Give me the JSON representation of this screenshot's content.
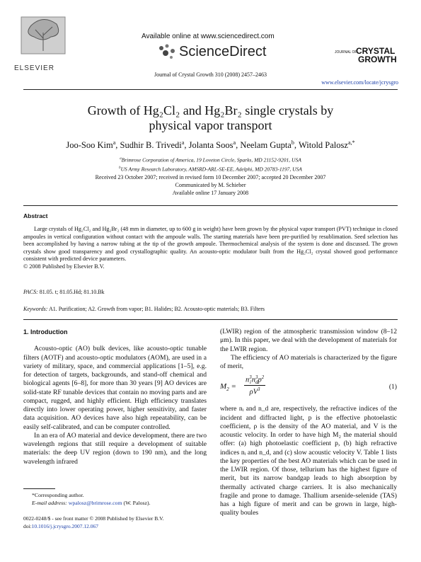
{
  "header": {
    "publisher": "ELSEVIER",
    "available_online": "Available online at www.sciencedirect.com",
    "brand": "ScienceDirect",
    "journal_logo": [
      "JOURNAL OF",
      "CRYSTAL",
      "GROWTH"
    ],
    "journal_ref": "Journal of Crystal Growth 310 (2008) 2457–2463",
    "url": "www.elsevier.com/locate/jcrysgro"
  },
  "title": "Growth of Hg₂Cl₂ and Hg₂Br₂ single crystals by physical vapor transport",
  "authors": [
    {
      "name": "Joo-Soo Kim",
      "affiliation": "a"
    },
    {
      "name": "Sudhir B. Trivedi",
      "affiliation": "a"
    },
    {
      "name": "Jolanta Soos",
      "affiliation": "a"
    },
    {
      "name": "Neelam Gupta",
      "affiliation": "b"
    },
    {
      "name": "Witold Palosz",
      "affiliation": "a,*"
    }
  ],
  "author_separator": ",",
  "affiliations": [
    {
      "mark": "a",
      "text": "Brimrose Corporation of America, 19 Loveton Circle, Sparks, MD 21152-9201, USA"
    },
    {
      "mark": "b",
      "text": "US Army Research Laboratory, AMSRD-ARL-SE-EE, Adelphi, MD 20783-1197, USA"
    }
  ],
  "history": [
    "Received 23 October 2007; received in revised form 10 December 2007; accepted 20 December 2007",
    "Communicated by M. Schieber",
    "Available online 17 January 2008"
  ],
  "abstract": {
    "heading": "Abstract",
    "text": "Large crystals of Hg₂Cl₂ and Hg₂Br₂ (48 mm in diameter, up to 600 g in weight) have been grown by the physical vapor transport (PVT) technique in closed ampoules in vertical configuration without contact with the ampoule walls. The starting materials have been pre-purified by resublimation. Seed selection has been accomplished by having a narrow tubing at the tip of the growth ampoule. Thermochemical analysis of the system is done and discussed. The grown crystals show good transparency and good crystallographic quality. An acousto-optic modulator built from the Hg₂Cl₂ crystal showed good performance consistent with predicted device parameters.",
    "copyright": "© 2008 Published by Elsevier B.V."
  },
  "pacs": {
    "label": "PACS:",
    "text": "81.05. t; 81.05.Hd; 81.10.Bk"
  },
  "keywords": {
    "label": "Keywords:",
    "text": "A1. Purification; A2. Growth from vapor; B1. Halides; B2. Acousto-optic materials; B3. Filters"
  },
  "body": {
    "heading": "1. Introduction",
    "left": [
      "Acousto-optic (AO) bulk devices, like acousto-optic tunable filters (AOTF) and acousto-optic modulators (AOM), are used in a variety of military, space, and commercial applications [1–5], e.g. for detection of targets, backgrounds, and stand-off chemical and biological agents [6–8], for more than 30 years [9] AO devices are solid-state RF tunable devices that contain no moving parts and are compact, rugged, and highly efficient. High efficiency translates directly into lower operating power, higher sensitivity, and faster data acquisition. AO devices have also high repeatability, can be easily self-calibrated, and can be computer controlled.",
      "In an era of AO material and device development, there are two wavelength regions that still require a development of suitable materials: the deep UV region (down to 190 nm), and the long wavelength infrared"
    ],
    "right": [
      "(LWIR) region of the atmospheric transmission window (8–12 μm). In this paper, we deal with the development of materials for the LWIR region.",
      "The efficiency of AO materials is characterized by the figure of merit,",
      "where nᵢ and n_d are, respectively, the refractive indices of the incident and diffracted light, p is the effective photoelastic coefficient, ρ is the density of the AO material, and V is the acoustic velocity. In order to have high M₂ the material should offer: (a) high photoelastic coefficient p, (b) high refractive indices nᵢ and n_d, and (c) slow acoustic velocity V. Table 1 lists the key properties of the best AO materials which can be used in the LWIR region. Of those, tellurium has the highest figure of merit, but its narrow bandgap leads to high absorption by thermally activated charge carriers. It is also mechanically fragile and prone to damage. Thallium arsenide-selenide (TAS) has a high figure of merit and can be grown in large, high-quality boules"
    ],
    "equation": {
      "lhs": "M",
      "lhs_sub": "2",
      "equals": "=",
      "numerator": [
        {
          "base": "n",
          "sub": "i",
          "sup": "3"
        },
        {
          "base": "n",
          "sub": "d",
          "sup": "3"
        },
        {
          "base": "p",
          "sup": "2"
        }
      ],
      "denominator": [
        {
          "base": "ρ"
        },
        {
          "base": "V",
          "sup": "3"
        }
      ],
      "number": "(1)"
    }
  },
  "footnote": {
    "corresponding": "*Corresponding author.",
    "email_label": "E-mail address:",
    "email": "wpalosz@brimrose.com",
    "owner": "(W. Palosz)."
  },
  "footer": {
    "issn": "0022-0248/$ - see front matter © 2008 Published by Elsevier B.V.",
    "doi_label": "doi:",
    "doi": "10.1016/j.jcrysgro.2007.12.067"
  }
}
